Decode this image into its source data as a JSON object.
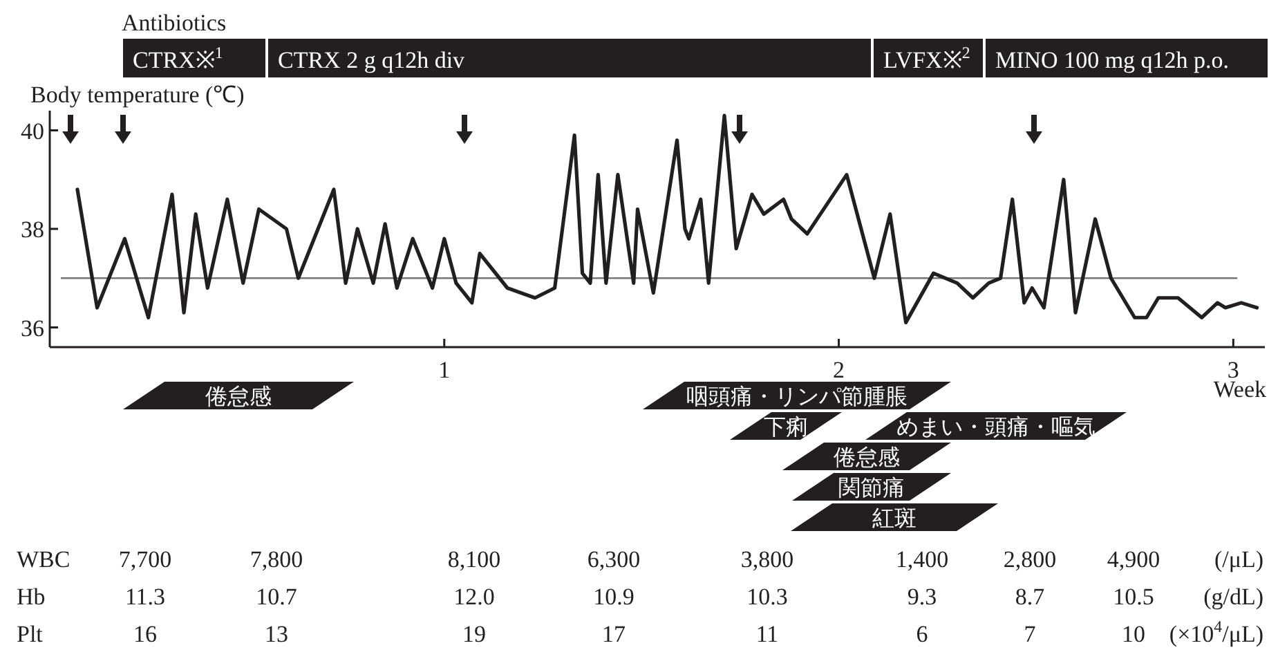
{
  "chart_data": {
    "type": "line",
    "title": "Antibiotics",
    "ylabel": "Body temperature (℃)",
    "xlabel": "Week",
    "xlim": [
      0,
      3.08
    ],
    "ylim": [
      35.6,
      40.4
    ],
    "xticks": [
      1,
      2,
      3
    ],
    "yticks": [
      36,
      38,
      40
    ],
    "marker": "none",
    "line_style": "solid",
    "grid": false,
    "series": [
      {
        "color": "#231f20",
        "x": [
          0.07,
          0.12,
          0.19,
          0.25,
          0.31,
          0.34,
          0.37,
          0.4,
          0.45,
          0.49,
          0.53,
          0.6,
          0.63,
          0.72,
          0.75,
          0.78,
          0.82,
          0.85,
          0.88,
          0.92,
          0.97,
          1.0,
          1.03,
          1.07,
          1.09,
          1.16,
          1.23,
          1.28,
          1.33,
          1.35,
          1.37,
          1.39,
          1.41,
          1.44,
          1.48,
          1.49,
          1.53,
          1.59,
          1.61,
          1.62,
          1.65,
          1.67,
          1.71,
          1.74,
          1.78,
          1.81,
          1.86,
          1.88,
          1.92,
          2.02,
          2.09,
          2.13,
          2.17,
          2.24,
          2.3,
          2.34,
          2.38,
          2.41,
          2.44,
          2.47,
          2.49,
          2.52,
          2.57,
          2.6,
          2.65,
          2.69,
          2.75,
          2.78,
          2.81,
          2.86,
          2.92,
          2.96,
          2.98,
          3.02,
          3.06
        ],
        "values": [
          38.8,
          36.4,
          37.8,
          36.2,
          38.7,
          36.3,
          38.3,
          36.8,
          38.6,
          36.9,
          38.4,
          38.0,
          37.0,
          38.8,
          36.9,
          38.0,
          36.9,
          38.1,
          36.8,
          37.8,
          36.8,
          37.8,
          36.9,
          36.5,
          37.5,
          36.8,
          36.6,
          36.8,
          39.9,
          37.1,
          36.9,
          39.1,
          36.9,
          39.1,
          36.9,
          38.4,
          36.7,
          39.8,
          38.0,
          37.8,
          38.6,
          36.9,
          40.3,
          37.6,
          38.7,
          38.3,
          38.6,
          38.2,
          37.9,
          39.1,
          37.0,
          38.3,
          36.1,
          37.1,
          36.9,
          36.6,
          36.9,
          37.0,
          38.6,
          36.5,
          36.8,
          36.4,
          39.0,
          36.3,
          38.2,
          37.0,
          36.2,
          36.2,
          36.6,
          36.6,
          36.2,
          36.5,
          36.4,
          36.5,
          36.4
        ]
      }
    ],
    "ref_lines": [
      {
        "axis": "y",
        "value": 37,
        "color": "#777777"
      }
    ],
    "annotations": [
      "CTRX※$^{1}$",
      "CTRX 2 g q12h div",
      "LVFX※$^{2}$",
      "MINO 100 mg q12h p.o.",
      "倦怠感",
      "咽頭痛・リンパ節腫脹",
      "下痢",
      "めまい・頭痛・嘔気",
      "倦怠感",
      "関節痛",
      "紅斑",
      "WBC",
      "7,700",
      "7,800",
      "8,100",
      "6,300",
      "3,800",
      "1,400",
      "2,800",
      "4,900",
      "(/μL)",
      "Hb",
      "11.3",
      "10.7",
      "12.0",
      "10.9",
      "10.3",
      "9.3",
      "8.7",
      "10.5",
      "(g/dL)",
      "Plt",
      "16",
      "13",
      "19",
      "17",
      "11",
      "6",
      "7",
      "10",
      "(×10$^{4}$/μL)"
    ]
  }
}
